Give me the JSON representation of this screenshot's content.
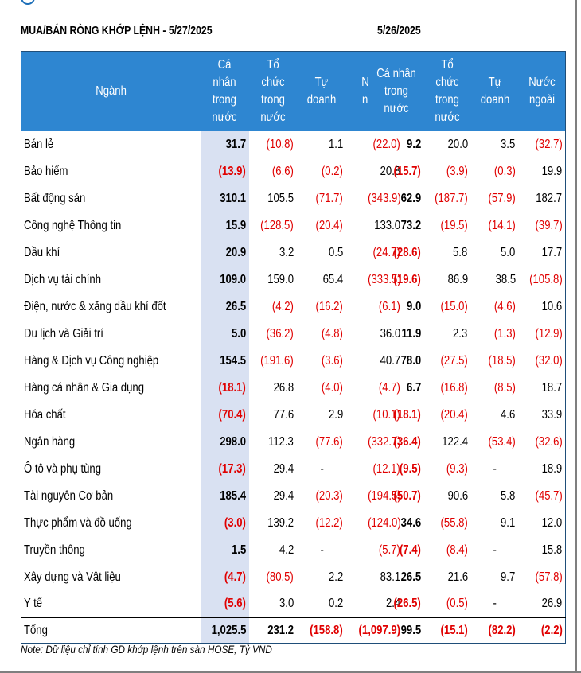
{
  "left_title": "MUA/BÁN RÒNG KHỚP LỆNH - 5/27/2025",
  "right_title": "5/26/2025",
  "headers": {
    "sector": "Ngành",
    "individual": "Cá nhân trong nước",
    "institution": "Tổ chức trong nước",
    "proprietary": "Tự doanh",
    "foreign": "Nước ngoài"
  },
  "rows": [
    {
      "sector": "Bán lẻ",
      "a": [
        "31.7",
        "(10.8)",
        "1.1",
        "(22.0)"
      ],
      "b": [
        "9.2",
        "20.0",
        "3.5",
        "(32.7)"
      ]
    },
    {
      "sector": "Bảo hiểm",
      "a": [
        "(13.9)",
        "(6.6)",
        "(0.2)",
        "20.8"
      ],
      "b": [
        "(15.7)",
        "(3.9)",
        "(0.3)",
        "19.9"
      ]
    },
    {
      "sector": "Bất động sản",
      "a": [
        "310.1",
        "105.5",
        "(71.7)",
        "(343.9)"
      ],
      "b": [
        "62.9",
        "(187.7)",
        "(57.9)",
        "182.7"
      ]
    },
    {
      "sector": "Công nghệ Thông tin",
      "a": [
        "15.9",
        "(128.5)",
        "(20.4)",
        "133.0"
      ],
      "b": [
        "73.2",
        "(19.5)",
        "(14.1)",
        "(39.7)"
      ]
    },
    {
      "sector": "Dầu khí",
      "a": [
        "20.9",
        "3.2",
        "0.5",
        "(24.7)"
      ],
      "b": [
        "(28.6)",
        "5.8",
        "5.0",
        "17.7"
      ]
    },
    {
      "sector": "Dịch vụ tài chính",
      "a": [
        "109.0",
        "159.0",
        "65.4",
        "(333.5)"
      ],
      "b": [
        "(19.6)",
        "86.9",
        "38.5",
        "(105.8)"
      ]
    },
    {
      "sector": "Điện, nước & xăng dầu khí đốt",
      "a": [
        "26.5",
        "(4.2)",
        "(16.2)",
        "(6.1)"
      ],
      "b": [
        "9.0",
        "(15.0)",
        "(4.6)",
        "10.6"
      ]
    },
    {
      "sector": "Du lịch và Giải trí",
      "a": [
        "5.0",
        "(36.2)",
        "(4.8)",
        "36.0"
      ],
      "b": [
        "11.9",
        "2.3",
        "(1.3)",
        "(12.9)"
      ]
    },
    {
      "sector": "Hàng & Dịch vụ Công nghiệp",
      "a": [
        "154.5",
        "(191.6)",
        "(3.6)",
        "40.7"
      ],
      "b": [
        "78.0",
        "(27.5)",
        "(18.5)",
        "(32.0)"
      ]
    },
    {
      "sector": "Hàng cá nhân & Gia dụng",
      "a": [
        "(18.1)",
        "26.8",
        "(4.0)",
        "(4.7)"
      ],
      "b": [
        "6.7",
        "(16.8)",
        "(8.5)",
        "18.7"
      ]
    },
    {
      "sector": "Hóa chất",
      "a": [
        "(70.4)",
        "77.6",
        "2.9",
        "(10.1)"
      ],
      "b": [
        "(18.1)",
        "(20.4)",
        "4.6",
        "33.9"
      ]
    },
    {
      "sector": "Ngân hàng",
      "a": [
        "298.0",
        "112.3",
        "(77.6)",
        "(332.7)"
      ],
      "b": [
        "(36.4)",
        "122.4",
        "(53.4)",
        "(32.6)"
      ]
    },
    {
      "sector": "Ô tô và phụ tùng",
      "a": [
        "(17.3)",
        "29.4",
        "-",
        "(12.1)"
      ],
      "b": [
        "(9.5)",
        "(9.3)",
        "-",
        "18.9"
      ]
    },
    {
      "sector": "Tài nguyên Cơ bản",
      "a": [
        "185.4",
        "29.4",
        "(20.3)",
        "(194.5)"
      ],
      "b": [
        "(50.7)",
        "90.6",
        "5.8",
        "(45.7)"
      ]
    },
    {
      "sector": "Thực phẩm và đồ uống",
      "a": [
        "(3.0)",
        "139.2",
        "(12.2)",
        "(124.0)"
      ],
      "b": [
        "34.6",
        "(55.8)",
        "9.1",
        "12.0"
      ]
    },
    {
      "sector": "Truyền thông",
      "a": [
        "1.5",
        "4.2",
        "-",
        "(5.7)"
      ],
      "b": [
        "(7.4)",
        "(8.4)",
        "-",
        "15.8"
      ]
    },
    {
      "sector": "Xây dựng và Vật liệu",
      "a": [
        "(4.7)",
        "(80.5)",
        "2.2",
        "83.1"
      ],
      "b": [
        "26.5",
        "21.6",
        "9.7",
        "(57.8)"
      ]
    },
    {
      "sector": "Y tế",
      "a": [
        "(5.6)",
        "3.0",
        "0.2",
        "2.4"
      ],
      "b": [
        "(26.5)",
        "(0.5)",
        "-",
        "26.9"
      ]
    }
  ],
  "total": {
    "sector": "Tổng",
    "a": [
      "1,025.5",
      "231.2",
      "(158.8)",
      "(1,097.9)"
    ],
    "b": [
      "99.5",
      "(15.1)",
      "(82.2)",
      "(2.2)"
    ]
  },
  "note": "Note: Dữ liệu chỉ tính GD khớp lệnh trên sàn HOSE, Tỷ VND",
  "colors": {
    "header_bg": "#2e86d1",
    "highlight_bg": "#d9e1f2",
    "negative": "#e00000"
  }
}
